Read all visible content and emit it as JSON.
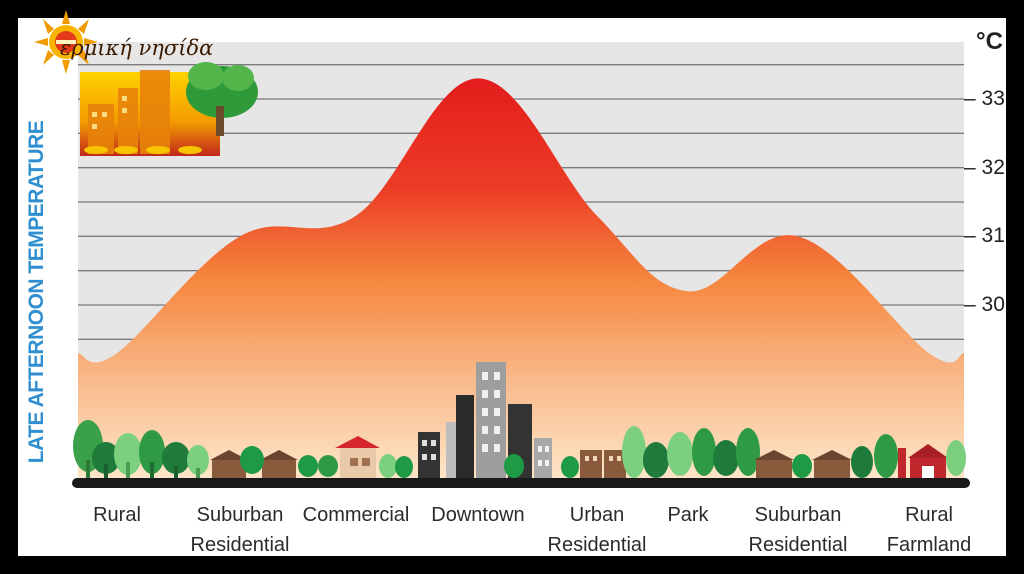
{
  "logo": {
    "text": "ερμική νησίδα",
    "icon": "sun-thermo-icon"
  },
  "chart_data": {
    "type": "area",
    "title": "",
    "xlabel": "",
    "ylabel": "LATE AFTERNOON TEMPERATURE",
    "unit": "°C",
    "yticks": [
      "33",
      "32",
      "31",
      "30"
    ],
    "ytick_values": [
      33,
      32,
      31,
      30
    ],
    "ylim": [
      28.3,
      33.4
    ],
    "grid": true,
    "categories": [
      "Rural",
      "Suburban\nResidential",
      "Commercial",
      "Downtown",
      "Urban\nResidential",
      "Park",
      "Suburban\nResidential",
      "Rural\nFarmland"
    ],
    "values": [
      29.3,
      31.0,
      31.3,
      33.3,
      31.3,
      30.2,
      31.0,
      29.3
    ]
  },
  "colors": {
    "peak": "#e52420",
    "mid": "#f5903c",
    "base": "#fce6c8",
    "sky": "#e6e6e6",
    "label_blue": "#2f8fd0"
  }
}
